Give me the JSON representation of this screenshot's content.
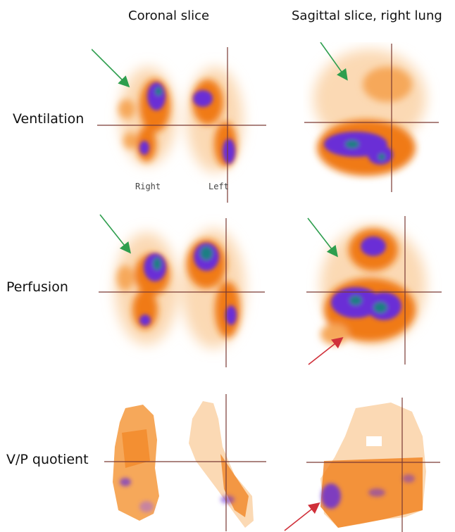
{
  "columns": {
    "coronal": "Coronal slice",
    "sagittal": "Sagittal slice, right lung"
  },
  "rows": {
    "ventilation": "Ventilation",
    "perfusion": "Perfusion",
    "vp": "V/P quotient"
  },
  "labels": {
    "right": "Right",
    "left": "Left"
  },
  "colors": {
    "hot": "#f07a12",
    "mid": "#f6a85a",
    "faint": "#fbd9b4",
    "purple": "#6a2fd6",
    "teal": "#1f7f84",
    "crosshair": "#7a3a34",
    "green_arrow": "#2e9e4e",
    "red_arrow": "#d0303a"
  }
}
